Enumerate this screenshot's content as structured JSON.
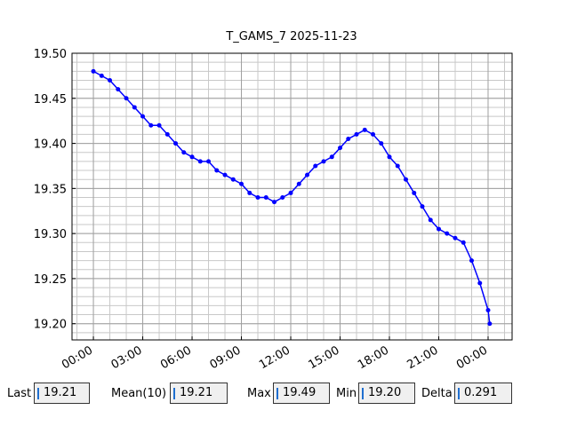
{
  "chart_data": {
    "type": "line",
    "title": "T_GAMS_7 2025-11-23",
    "x": [
      0,
      0.5,
      1,
      1.5,
      2,
      2.5,
      3,
      3.5,
      4,
      4.5,
      5,
      5.5,
      6,
      6.5,
      7,
      7.5,
      8,
      8.5,
      9,
      9.5,
      10,
      10.5,
      11,
      11.5,
      12,
      12.5,
      13,
      13.5,
      14,
      14.5,
      15,
      15.5,
      16,
      16.5,
      17,
      17.5,
      18,
      18.5,
      19,
      19.5,
      20,
      20.5,
      21,
      21.5,
      22,
      22.5,
      23,
      23.5,
      24,
      24.1
    ],
    "series": [
      {
        "color": "#0000ff",
        "values": [
          19.48,
          19.475,
          19.47,
          19.46,
          19.45,
          19.44,
          19.43,
          19.42,
          19.42,
          19.41,
          19.4,
          19.39,
          19.385,
          19.38,
          19.38,
          19.37,
          19.365,
          19.36,
          19.355,
          19.345,
          19.34,
          19.34,
          19.335,
          19.34,
          19.345,
          19.355,
          19.365,
          19.375,
          19.38,
          19.385,
          19.395,
          19.405,
          19.41,
          19.415,
          19.41,
          19.4,
          19.385,
          19.375,
          19.36,
          19.345,
          19.33,
          19.315,
          19.305,
          19.3,
          19.295,
          19.29,
          19.27,
          19.245,
          19.215,
          19.2
        ]
      }
    ],
    "xlim": [
      -1.3,
      25.46
    ],
    "xticks": [
      {
        "value": 0,
        "label": "00:00"
      },
      {
        "value": 3,
        "label": "03:00"
      },
      {
        "value": 6,
        "label": "06:00"
      },
      {
        "value": 9,
        "label": "09:00"
      },
      {
        "value": 12,
        "label": "12:00"
      },
      {
        "value": 15,
        "label": "15:00"
      },
      {
        "value": 18,
        "label": "18:00"
      },
      {
        "value": 21,
        "label": "21:00"
      },
      {
        "value": 24,
        "label": "00:00"
      }
    ],
    "ylim": [
      19.182,
      19.5
    ],
    "yticks": [
      {
        "value": 19.2,
        "label": "19.20"
      },
      {
        "value": 19.25,
        "label": "19.25"
      },
      {
        "value": 19.3,
        "label": "19.30"
      },
      {
        "value": 19.35,
        "label": "19.35"
      },
      {
        "value": 19.4,
        "label": "19.40"
      },
      {
        "value": 19.45,
        "label": "19.45"
      },
      {
        "value": 19.5,
        "label": "19.50"
      }
    ],
    "xminor": 1,
    "yminor": 0.01,
    "grid": true
  },
  "stats": [
    {
      "label": "Last",
      "value": "19.21"
    },
    {
      "label": "Mean(10)",
      "value": "19.21"
    },
    {
      "label": "Max",
      "value": "19.49"
    },
    {
      "label": "Min",
      "value": "19.20"
    },
    {
      "label": "Delta",
      "value": "0.291"
    }
  ]
}
